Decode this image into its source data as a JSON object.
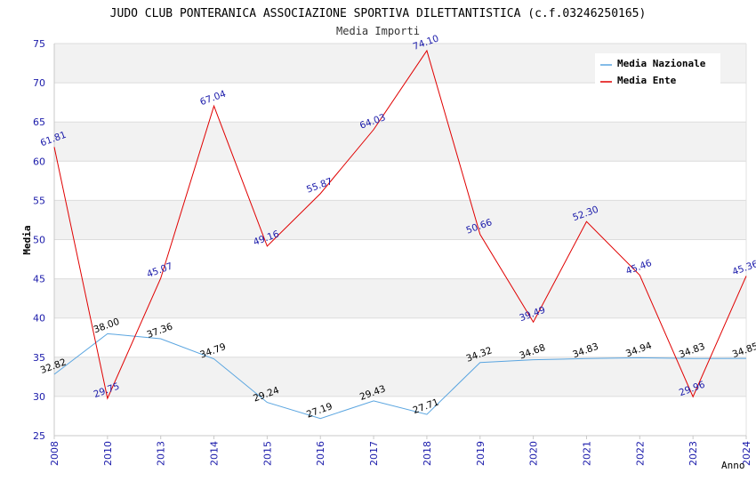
{
  "chart_data": {
    "type": "line",
    "title": "JUDO CLUB PONTERANICA ASSOCIAZIONE SPORTIVA DILETTANTISTICA (c.f.03246250165)",
    "subtitle": "Media Importi",
    "xlabel": "Anno",
    "ylabel": "Media",
    "ylim": [
      25,
      75
    ],
    "yticks": [
      25,
      30,
      35,
      40,
      45,
      50,
      55,
      60,
      65,
      70,
      75
    ],
    "categories": [
      "2008",
      "2010",
      "2013",
      "2014",
      "2015",
      "2016",
      "2017",
      "2018",
      "2019",
      "2020",
      "2021",
      "2022",
      "2023",
      "2024"
    ],
    "legend_position": "top-right",
    "series": [
      {
        "name": "Media Nazionale",
        "color": "#5aa5e0",
        "label_color": "#000000",
        "values": [
          32.82,
          38.0,
          37.36,
          34.79,
          29.24,
          27.19,
          29.43,
          27.71,
          34.32,
          34.68,
          34.83,
          34.94,
          34.83,
          34.85
        ],
        "labels": [
          "32.82",
          "38.00",
          "37.36",
          "34.79",
          "29.24",
          "27.19",
          "29.43",
          "27.71",
          "34.32",
          "34.68",
          "34.83",
          "34.94",
          "34.83",
          "34.85"
        ]
      },
      {
        "name": "Media Ente",
        "color": "#e00000",
        "label_color": "#1a1aaa",
        "values": [
          61.81,
          29.75,
          45.07,
          67.04,
          49.16,
          55.87,
          64.03,
          74.1,
          50.66,
          39.49,
          52.3,
          45.46,
          29.96,
          45.36
        ],
        "labels": [
          "61.81",
          "29.75",
          "45.07",
          "67.04",
          "49.16",
          "55.87",
          "64.03",
          "74.10",
          "50.66",
          "39.49",
          "52.30",
          "45.46",
          "29.96",
          "45.36"
        ]
      }
    ]
  }
}
